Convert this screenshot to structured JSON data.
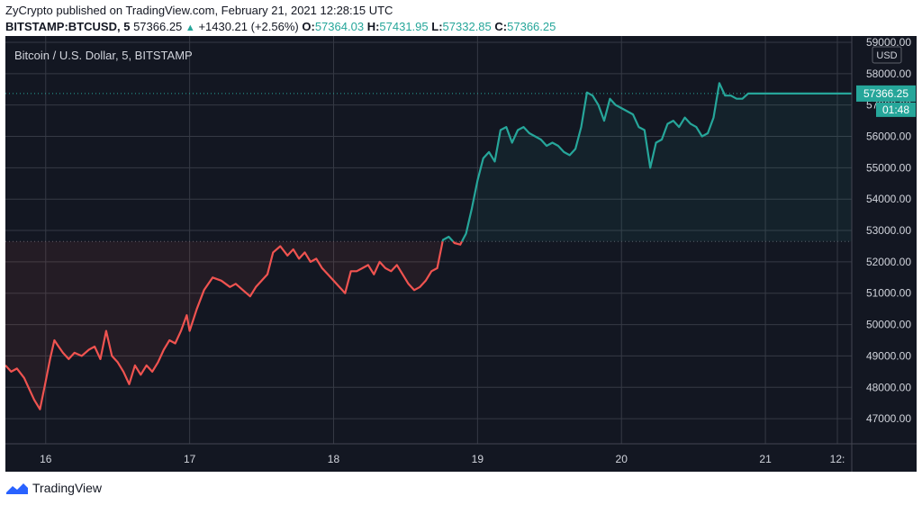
{
  "header": {
    "line1": "ZyCrypto published on TradingView.com, February 21, 2021 12:28:15 UTC",
    "symbol": "BITSTAMP:BTCUSD, 5",
    "last": "57366.25",
    "change_arrow": "▲",
    "change": "+1430.21 (+2.56%)",
    "o_label": "O:",
    "o_value": "57364.03",
    "h_label": "H:",
    "h_value": "57431.95",
    "l_label": "L:",
    "l_value": "57332.85",
    "c_label": "C:",
    "c_value": "57366.25"
  },
  "footer": {
    "brand": "TradingView",
    "logo_icon": "tradingview-logo-icon"
  },
  "colors": {
    "background": "#131722",
    "up": "#26a69a",
    "down": "#ef5350",
    "grid": "#363a45",
    "text": "#d1d4dc"
  },
  "chart_data": {
    "type": "line",
    "title": "Bitcoin / U.S. Dollar, 5, BITSTAMP",
    "currency": "USD",
    "x_ticks": [
      "16",
      "17",
      "18",
      "19",
      "20",
      "21",
      "12:"
    ],
    "x_tick_pos": [
      0.7,
      1.7,
      2.7,
      3.7,
      4.7,
      5.7,
      6.2
    ],
    "xlim": [
      0.42,
      6.3
    ],
    "ylim": [
      46200,
      59200
    ],
    "y_ticks": [
      47000,
      48000,
      49000,
      50000,
      51000,
      52000,
      53000,
      54000,
      55000,
      56000,
      57000,
      58000,
      59000
    ],
    "baseline": 52650,
    "last_price_label": "57366.25",
    "countdown_label": "01:48",
    "series": [
      {
        "x": [
          0.42,
          0.46,
          0.5,
          0.55,
          0.58,
          0.62,
          0.66,
          0.7,
          0.73,
          0.76,
          0.79,
          0.82,
          0.86,
          0.9,
          0.95,
          1.0,
          1.04,
          1.08,
          1.12,
          1.16,
          1.2,
          1.24,
          1.28,
          1.32,
          1.36,
          1.4,
          1.44,
          1.48,
          1.52,
          1.56,
          1.6,
          1.64,
          1.68,
          1.7,
          1.75,
          1.8,
          1.86,
          1.92,
          1.98,
          2.02,
          2.07,
          2.12,
          2.16,
          2.2,
          2.24,
          2.28,
          2.33,
          2.38,
          2.42,
          2.46,
          2.5,
          2.54,
          2.58,
          2.62,
          2.66,
          2.7,
          2.74,
          2.78,
          2.82,
          2.86,
          2.9,
          2.94,
          2.98,
          3.02,
          3.06,
          3.1,
          3.14,
          3.18,
          3.22,
          3.26,
          3.3,
          3.34,
          3.38,
          3.42,
          3.46,
          3.5,
          3.54,
          3.58,
          3.62,
          3.66,
          3.7,
          3.74,
          3.78,
          3.82,
          3.86,
          3.9,
          3.94,
          3.98,
          4.02,
          4.06,
          4.1,
          4.14,
          4.18,
          4.22,
          4.26,
          4.3,
          4.34,
          4.38,
          4.42,
          4.46,
          4.5,
          4.54,
          4.58,
          4.62,
          4.66,
          4.7,
          4.74,
          4.78,
          4.82,
          4.86,
          4.9,
          4.94,
          4.98,
          5.02,
          5.06,
          5.1,
          5.14,
          5.18,
          5.22,
          5.26,
          5.3,
          5.34,
          5.38,
          5.42,
          5.46,
          5.5,
          5.54,
          5.58,
          5.62,
          5.66,
          5.7,
          5.74,
          5.78,
          5.82,
          5.86,
          5.9,
          5.94,
          5.98,
          6.02,
          6.06,
          6.1,
          6.14,
          6.18,
          6.22,
          6.26,
          6.3
        ],
        "y": [
          48700,
          48500,
          48600,
          48300,
          48000,
          47600,
          47300,
          48200,
          48900,
          49500,
          49300,
          49100,
          48900,
          49100,
          49000,
          49200,
          49300,
          48900,
          49800,
          49000,
          48800,
          48500,
          48100,
          48700,
          48400,
          48700,
          48500,
          48800,
          49200,
          49500,
          49400,
          49800,
          50300,
          49800,
          50500,
          51100,
          51500,
          51400,
          51200,
          51300,
          51100,
          50900,
          51200,
          51400,
          51600,
          52300,
          52500,
          52200,
          52400,
          52100,
          52300,
          52000,
          52100,
          51800,
          51600,
          51400,
          51200,
          51000,
          51700,
          51700,
          51800,
          51900,
          51600,
          52000,
          51800,
          51700,
          51900,
          51600,
          51300,
          51100,
          51200,
          51400,
          51700,
          51800,
          52700,
          52800,
          52600,
          52550,
          52900,
          53700,
          54600,
          55300,
          55500,
          55200,
          56200,
          56300,
          55800,
          56200,
          56300,
          56100,
          56000,
          55900,
          55700,
          55800,
          55700,
          55500,
          55400,
          55600,
          56300,
          57400,
          57300,
          57000,
          56500,
          57200,
          57000,
          56900,
          56800,
          56700,
          56300,
          56200,
          55000,
          55800,
          55900,
          56400,
          56500,
          56300,
          56600,
          56400,
          56300,
          56000,
          56100,
          56600,
          57700,
          57300,
          57300,
          57200,
          57200,
          57366,
          57366,
          57366,
          57366,
          57366,
          57366,
          57366,
          57366,
          57366,
          57366,
          57366,
          57366,
          57366,
          57366,
          57366,
          57366,
          57366,
          57366,
          57366
        ]
      }
    ]
  }
}
